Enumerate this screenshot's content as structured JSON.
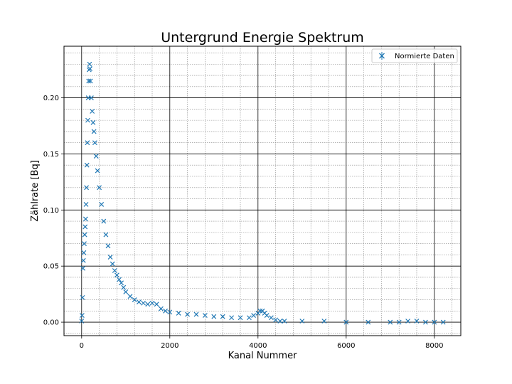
{
  "chart_data": {
    "type": "scatter",
    "title": "Untergrund Energie Spektrum",
    "xlabel": "Kanal Nummer",
    "ylabel": "Zählrate [Bq]",
    "xlim": [
      -400,
      8600
    ],
    "ylim": [
      -0.012,
      0.246
    ],
    "x_ticks": [
      0,
      2000,
      4000,
      6000,
      8000
    ],
    "y_ticks": [
      0.0,
      0.05,
      0.1,
      0.15,
      0.2
    ],
    "x_tick_labels": [
      "0",
      "2000",
      "4000",
      "6000",
      "8000"
    ],
    "y_tick_labels": [
      "0.00",
      "0.05",
      "0.10",
      "0.15",
      "0.20"
    ],
    "grid": {
      "major": true,
      "minor": true
    },
    "legend": {
      "position": "top-right",
      "entries": [
        "Normierte Daten"
      ]
    },
    "marker": "x",
    "color": "#1f77b4",
    "series": [
      {
        "name": "Normierte Daten",
        "x": [
          0,
          10,
          20,
          30,
          40,
          50,
          60,
          70,
          80,
          90,
          100,
          110,
          120,
          130,
          140,
          150,
          160,
          170,
          180,
          190,
          200,
          220,
          240,
          260,
          280,
          300,
          330,
          360,
          400,
          450,
          500,
          550,
          600,
          650,
          700,
          750,
          800,
          850,
          900,
          950,
          1000,
          1100,
          1200,
          1300,
          1400,
          1500,
          1600,
          1700,
          1800,
          1900,
          2000,
          2200,
          2400,
          2600,
          2800,
          3000,
          3200,
          3400,
          3600,
          3800,
          3900,
          4000,
          4050,
          4100,
          4150,
          4200,
          4300,
          4400,
          4500,
          4600,
          5000,
          5500,
          6000,
          6500,
          7000,
          7200,
          7400,
          7600,
          7800,
          8000,
          8200
        ],
        "y": [
          0.001,
          0.006,
          0.022,
          0.048,
          0.055,
          0.062,
          0.07,
          0.078,
          0.085,
          0.092,
          0.105,
          0.12,
          0.14,
          0.16,
          0.18,
          0.2,
          0.215,
          0.225,
          0.23,
          0.226,
          0.215,
          0.2,
          0.188,
          0.178,
          0.17,
          0.16,
          0.148,
          0.135,
          0.12,
          0.105,
          0.09,
          0.078,
          0.068,
          0.058,
          0.052,
          0.046,
          0.042,
          0.038,
          0.035,
          0.031,
          0.027,
          0.023,
          0.02,
          0.018,
          0.017,
          0.016,
          0.017,
          0.016,
          0.012,
          0.01,
          0.009,
          0.008,
          0.007,
          0.007,
          0.006,
          0.005,
          0.005,
          0.004,
          0.004,
          0.004,
          0.006,
          0.008,
          0.01,
          0.01,
          0.008,
          0.006,
          0.004,
          0.002,
          0.001,
          0.001,
          0.001,
          0.001,
          0.0,
          0.0,
          0.0,
          0.0,
          0.001,
          0.001,
          0.0,
          0.0,
          0.0
        ]
      }
    ]
  }
}
